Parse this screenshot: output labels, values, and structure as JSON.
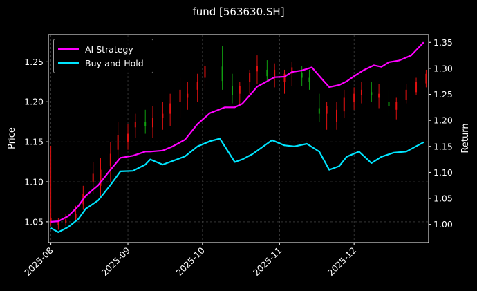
{
  "chart_data": {
    "type": "line",
    "title": "fund [563630.SH]",
    "ylabel_left": "Price",
    "ylabel_right": "Return",
    "ylim_left": [
      1.024,
      1.284
    ],
    "ylim_right": [
      0.965,
      1.365
    ],
    "yticks_left": [
      "1.05",
      "1.10",
      "1.15",
      "1.20",
      "1.25"
    ],
    "yticks_right": [
      "1.00",
      "1.05",
      "1.10",
      "1.15",
      "1.20",
      "1.25",
      "1.30",
      "1.35"
    ],
    "xticks": [
      "2025-08",
      "2025-09",
      "2025-10",
      "2025-11",
      "2025-12"
    ],
    "grid": true,
    "legend_position": "top-left",
    "colors": {
      "background": "#000000",
      "up": "#e01010",
      "down": "#10a010",
      "ai": "#ff00ff",
      "bh": "#00e5ff"
    },
    "series": [
      {
        "name": "AI Strategy",
        "axis": "right",
        "x": [
          "2025-08-01",
          "2025-08-04",
          "2025-08-08",
          "2025-08-12",
          "2025-08-15",
          "2025-08-20",
          "2025-08-25",
          "2025-08-29",
          "2025-09-03",
          "2025-09-08",
          "2025-09-10",
          "2025-09-15",
          "2025-09-19",
          "2025-09-24",
          "2025-09-29",
          "2025-10-04",
          "2025-10-10",
          "2025-10-14",
          "2025-10-17",
          "2025-10-20",
          "2025-10-23",
          "2025-10-27",
          "2025-10-30",
          "2025-11-03",
          "2025-11-06",
          "2025-11-10",
          "2025-11-14",
          "2025-11-18",
          "2025-11-21",
          "2025-11-25",
          "2025-11-28",
          "2025-12-01",
          "2025-12-05",
          "2025-12-09",
          "2025-12-12",
          "2025-12-15",
          "2025-12-19",
          "2025-12-24",
          "2025-12-29"
        ],
        "values": [
          1.005,
          1.006,
          1.016,
          1.035,
          1.055,
          1.075,
          1.105,
          1.128,
          1.132,
          1.14,
          1.14,
          1.142,
          1.15,
          1.163,
          1.193,
          1.214,
          1.225,
          1.225,
          1.232,
          1.248,
          1.265,
          1.275,
          1.283,
          1.284,
          1.293,
          1.296,
          1.302,
          1.28,
          1.264,
          1.268,
          1.275,
          1.285,
          1.297,
          1.306,
          1.303,
          1.312,
          1.315,
          1.325,
          1.35
        ]
      },
      {
        "name": "Buy-and-Hold",
        "axis": "right",
        "x": [
          "2025-08-01",
          "2025-08-04",
          "2025-08-08",
          "2025-08-12",
          "2025-08-15",
          "2025-08-20",
          "2025-08-25",
          "2025-08-29",
          "2025-09-03",
          "2025-09-08",
          "2025-09-10",
          "2025-09-15",
          "2025-09-19",
          "2025-09-24",
          "2025-09-29",
          "2025-10-04",
          "2025-10-08",
          "2025-10-14",
          "2025-10-17",
          "2025-10-21",
          "2025-10-24",
          "2025-10-29",
          "2025-11-03",
          "2025-11-07",
          "2025-11-12",
          "2025-11-17",
          "2025-11-21",
          "2025-11-25",
          "2025-11-28",
          "2025-12-03",
          "2025-12-08",
          "2025-12-12",
          "2025-12-17",
          "2025-12-22",
          "2025-12-29"
        ],
        "values": [
          0.993,
          0.985,
          0.995,
          1.01,
          1.03,
          1.046,
          1.076,
          1.102,
          1.103,
          1.115,
          1.125,
          1.115,
          1.122,
          1.131,
          1.15,
          1.16,
          1.165,
          1.12,
          1.125,
          1.135,
          1.145,
          1.162,
          1.152,
          1.15,
          1.155,
          1.14,
          1.105,
          1.112,
          1.13,
          1.14,
          1.118,
          1.13,
          1.138,
          1.14,
          1.158
        ]
      }
    ],
    "candles": {
      "axis": "left",
      "note": "daily OHLC bars (open, high, low, close) in price units",
      "x": [
        "2025-08-01",
        "2025-08-04",
        "2025-08-07",
        "2025-08-11",
        "2025-08-14",
        "2025-08-18",
        "2025-08-21",
        "2025-08-25",
        "2025-08-28",
        "2025-09-01",
        "2025-09-04",
        "2025-09-08",
        "2025-09-11",
        "2025-09-15",
        "2025-09-18",
        "2025-09-22",
        "2025-09-25",
        "2025-09-29",
        "2025-10-02",
        "2025-10-09",
        "2025-10-13",
        "2025-10-16",
        "2025-10-20",
        "2025-10-23",
        "2025-10-27",
        "2025-10-30",
        "2025-11-03",
        "2025-11-06",
        "2025-11-10",
        "2025-11-13",
        "2025-11-17",
        "2025-11-20",
        "2025-11-24",
        "2025-11-27",
        "2025-12-01",
        "2025-12-04",
        "2025-12-08",
        "2025-12-11",
        "2025-12-15",
        "2025-12-18",
        "2025-12-22",
        "2025-12-26",
        "2025-12-30"
      ],
      "open": [
        1.05,
        1.046,
        1.049,
        1.054,
        1.072,
        1.1,
        1.095,
        1.12,
        1.14,
        1.15,
        1.168,
        1.175,
        1.168,
        1.18,
        1.185,
        1.2,
        1.205,
        1.215,
        1.23,
        1.244,
        1.22,
        1.21,
        1.225,
        1.238,
        1.24,
        1.232,
        1.225,
        1.235,
        1.236,
        1.23,
        1.192,
        1.185,
        1.175,
        1.188,
        1.2,
        1.208,
        1.212,
        1.205,
        1.2,
        1.19,
        1.202,
        1.212,
        1.223
      ],
      "high": [
        1.145,
        1.055,
        1.06,
        1.07,
        1.095,
        1.125,
        1.13,
        1.15,
        1.175,
        1.172,
        1.185,
        1.19,
        1.195,
        1.2,
        1.21,
        1.23,
        1.225,
        1.235,
        1.25,
        1.27,
        1.235,
        1.225,
        1.24,
        1.258,
        1.252,
        1.248,
        1.24,
        1.25,
        1.245,
        1.24,
        1.21,
        1.2,
        1.2,
        1.215,
        1.218,
        1.225,
        1.225,
        1.222,
        1.215,
        1.205,
        1.222,
        1.23,
        1.24
      ],
      "low": [
        1.045,
        1.04,
        1.045,
        1.05,
        1.065,
        1.085,
        1.08,
        1.1,
        1.125,
        1.14,
        1.155,
        1.16,
        1.155,
        1.165,
        1.17,
        1.18,
        1.19,
        1.2,
        1.215,
        1.215,
        1.198,
        1.195,
        1.21,
        1.222,
        1.225,
        1.218,
        1.21,
        1.22,
        1.22,
        1.215,
        1.175,
        1.165,
        1.165,
        1.18,
        1.19,
        1.198,
        1.2,
        1.192,
        1.185,
        1.178,
        1.198,
        1.208,
        1.218
      ],
      "close": [
        1.055,
        1.05,
        1.053,
        1.06,
        1.085,
        1.11,
        1.115,
        1.135,
        1.158,
        1.16,
        1.175,
        1.17,
        1.18,
        1.185,
        1.198,
        1.215,
        1.21,
        1.225,
        1.245,
        1.226,
        1.208,
        1.22,
        1.236,
        1.245,
        1.232,
        1.24,
        1.235,
        1.243,
        1.23,
        1.225,
        1.185,
        1.195,
        1.19,
        1.205,
        1.21,
        1.215,
        1.208,
        1.21,
        1.195,
        1.2,
        1.215,
        1.225,
        1.235
      ]
    }
  }
}
